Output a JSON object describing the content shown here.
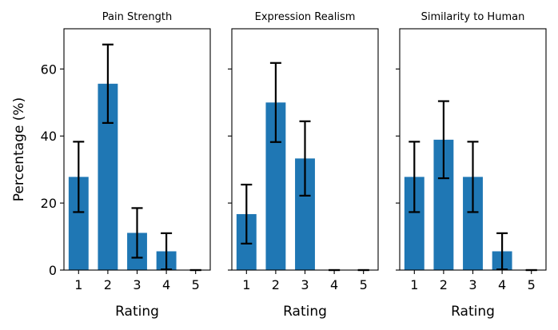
{
  "chart_data": [
    {
      "type": "bar",
      "title": "Pain Strength",
      "xlabel": "Rating",
      "ylabel": "Percentage (%)",
      "categories": [
        "1",
        "2",
        "3",
        "4",
        "5"
      ],
      "values": [
        27.8,
        55.6,
        11.1,
        5.6,
        0
      ],
      "error": [
        10.5,
        11.7,
        7.4,
        5.4,
        0
      ],
      "ylim": [
        0,
        72
      ],
      "yticks": [
        0,
        20,
        40,
        60
      ],
      "color": "#1f77b4"
    },
    {
      "type": "bar",
      "title": "Expression Realism",
      "xlabel": "Rating",
      "ylabel": "",
      "categories": [
        "1",
        "2",
        "3",
        "4",
        "5"
      ],
      "values": [
        16.7,
        50.0,
        33.3,
        0,
        0
      ],
      "error": [
        8.8,
        11.8,
        11.1,
        0,
        0
      ],
      "ylim": [
        0,
        72
      ],
      "yticks": [
        0,
        20,
        40,
        60
      ],
      "color": "#1f77b4"
    },
    {
      "type": "bar",
      "title": "Similarity to Human",
      "xlabel": "Rating",
      "ylabel": "",
      "categories": [
        "1",
        "2",
        "3",
        "4",
        "5"
      ],
      "values": [
        27.8,
        38.9,
        27.8,
        5.6,
        0
      ],
      "error": [
        10.5,
        11.5,
        10.5,
        5.4,
        0
      ],
      "ylim": [
        0,
        72
      ],
      "yticks": [
        0,
        20,
        40,
        60
      ],
      "color": "#1f77b4"
    }
  ]
}
